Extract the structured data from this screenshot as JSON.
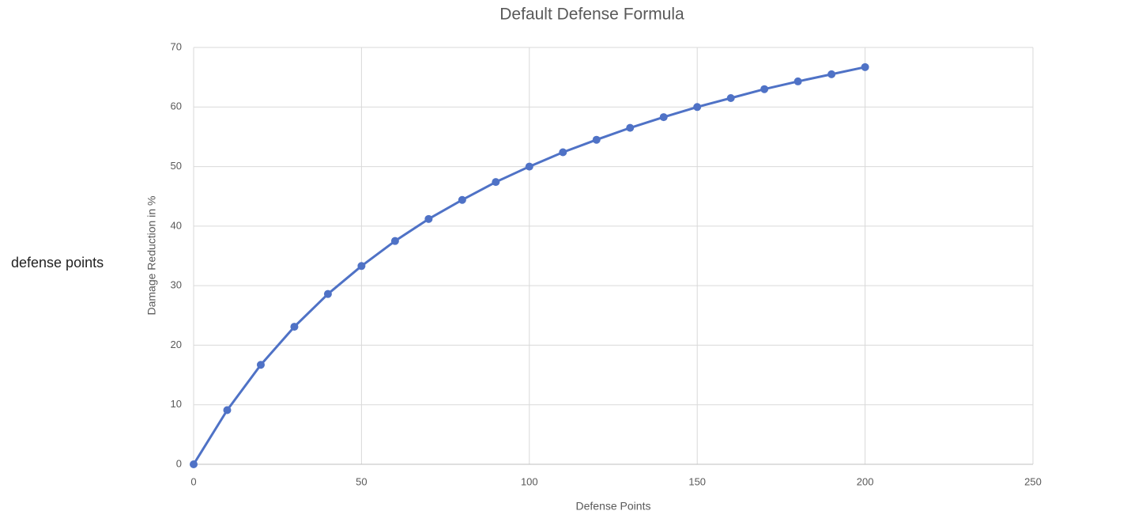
{
  "side_label": "defense points",
  "chart_data": {
    "type": "line",
    "title": "Default Defense Formula",
    "x_label": "Defense Points",
    "y_label": "Damage Reduction in %",
    "x": [
      0,
      10,
      20,
      30,
      40,
      50,
      60,
      70,
      80,
      90,
      100,
      110,
      120,
      130,
      140,
      150,
      160,
      170,
      180,
      190,
      200
    ],
    "series": [
      {
        "name": "Damage Reduction",
        "color": "#4f72c6",
        "values": [
          0,
          9.1,
          16.7,
          23.1,
          28.6,
          33.3,
          37.5,
          41.2,
          44.4,
          47.4,
          50,
          52.4,
          54.5,
          56.5,
          58.3,
          60,
          61.5,
          63,
          64.3,
          65.5,
          66.7
        ]
      }
    ],
    "xlim": [
      0,
      250
    ],
    "xticks": [
      0,
      50,
      100,
      150,
      200,
      250
    ],
    "ylim": [
      0,
      70
    ],
    "yticks": [
      0,
      10,
      20,
      30,
      40,
      50,
      60,
      70
    ],
    "grid": true,
    "legend": false
  }
}
